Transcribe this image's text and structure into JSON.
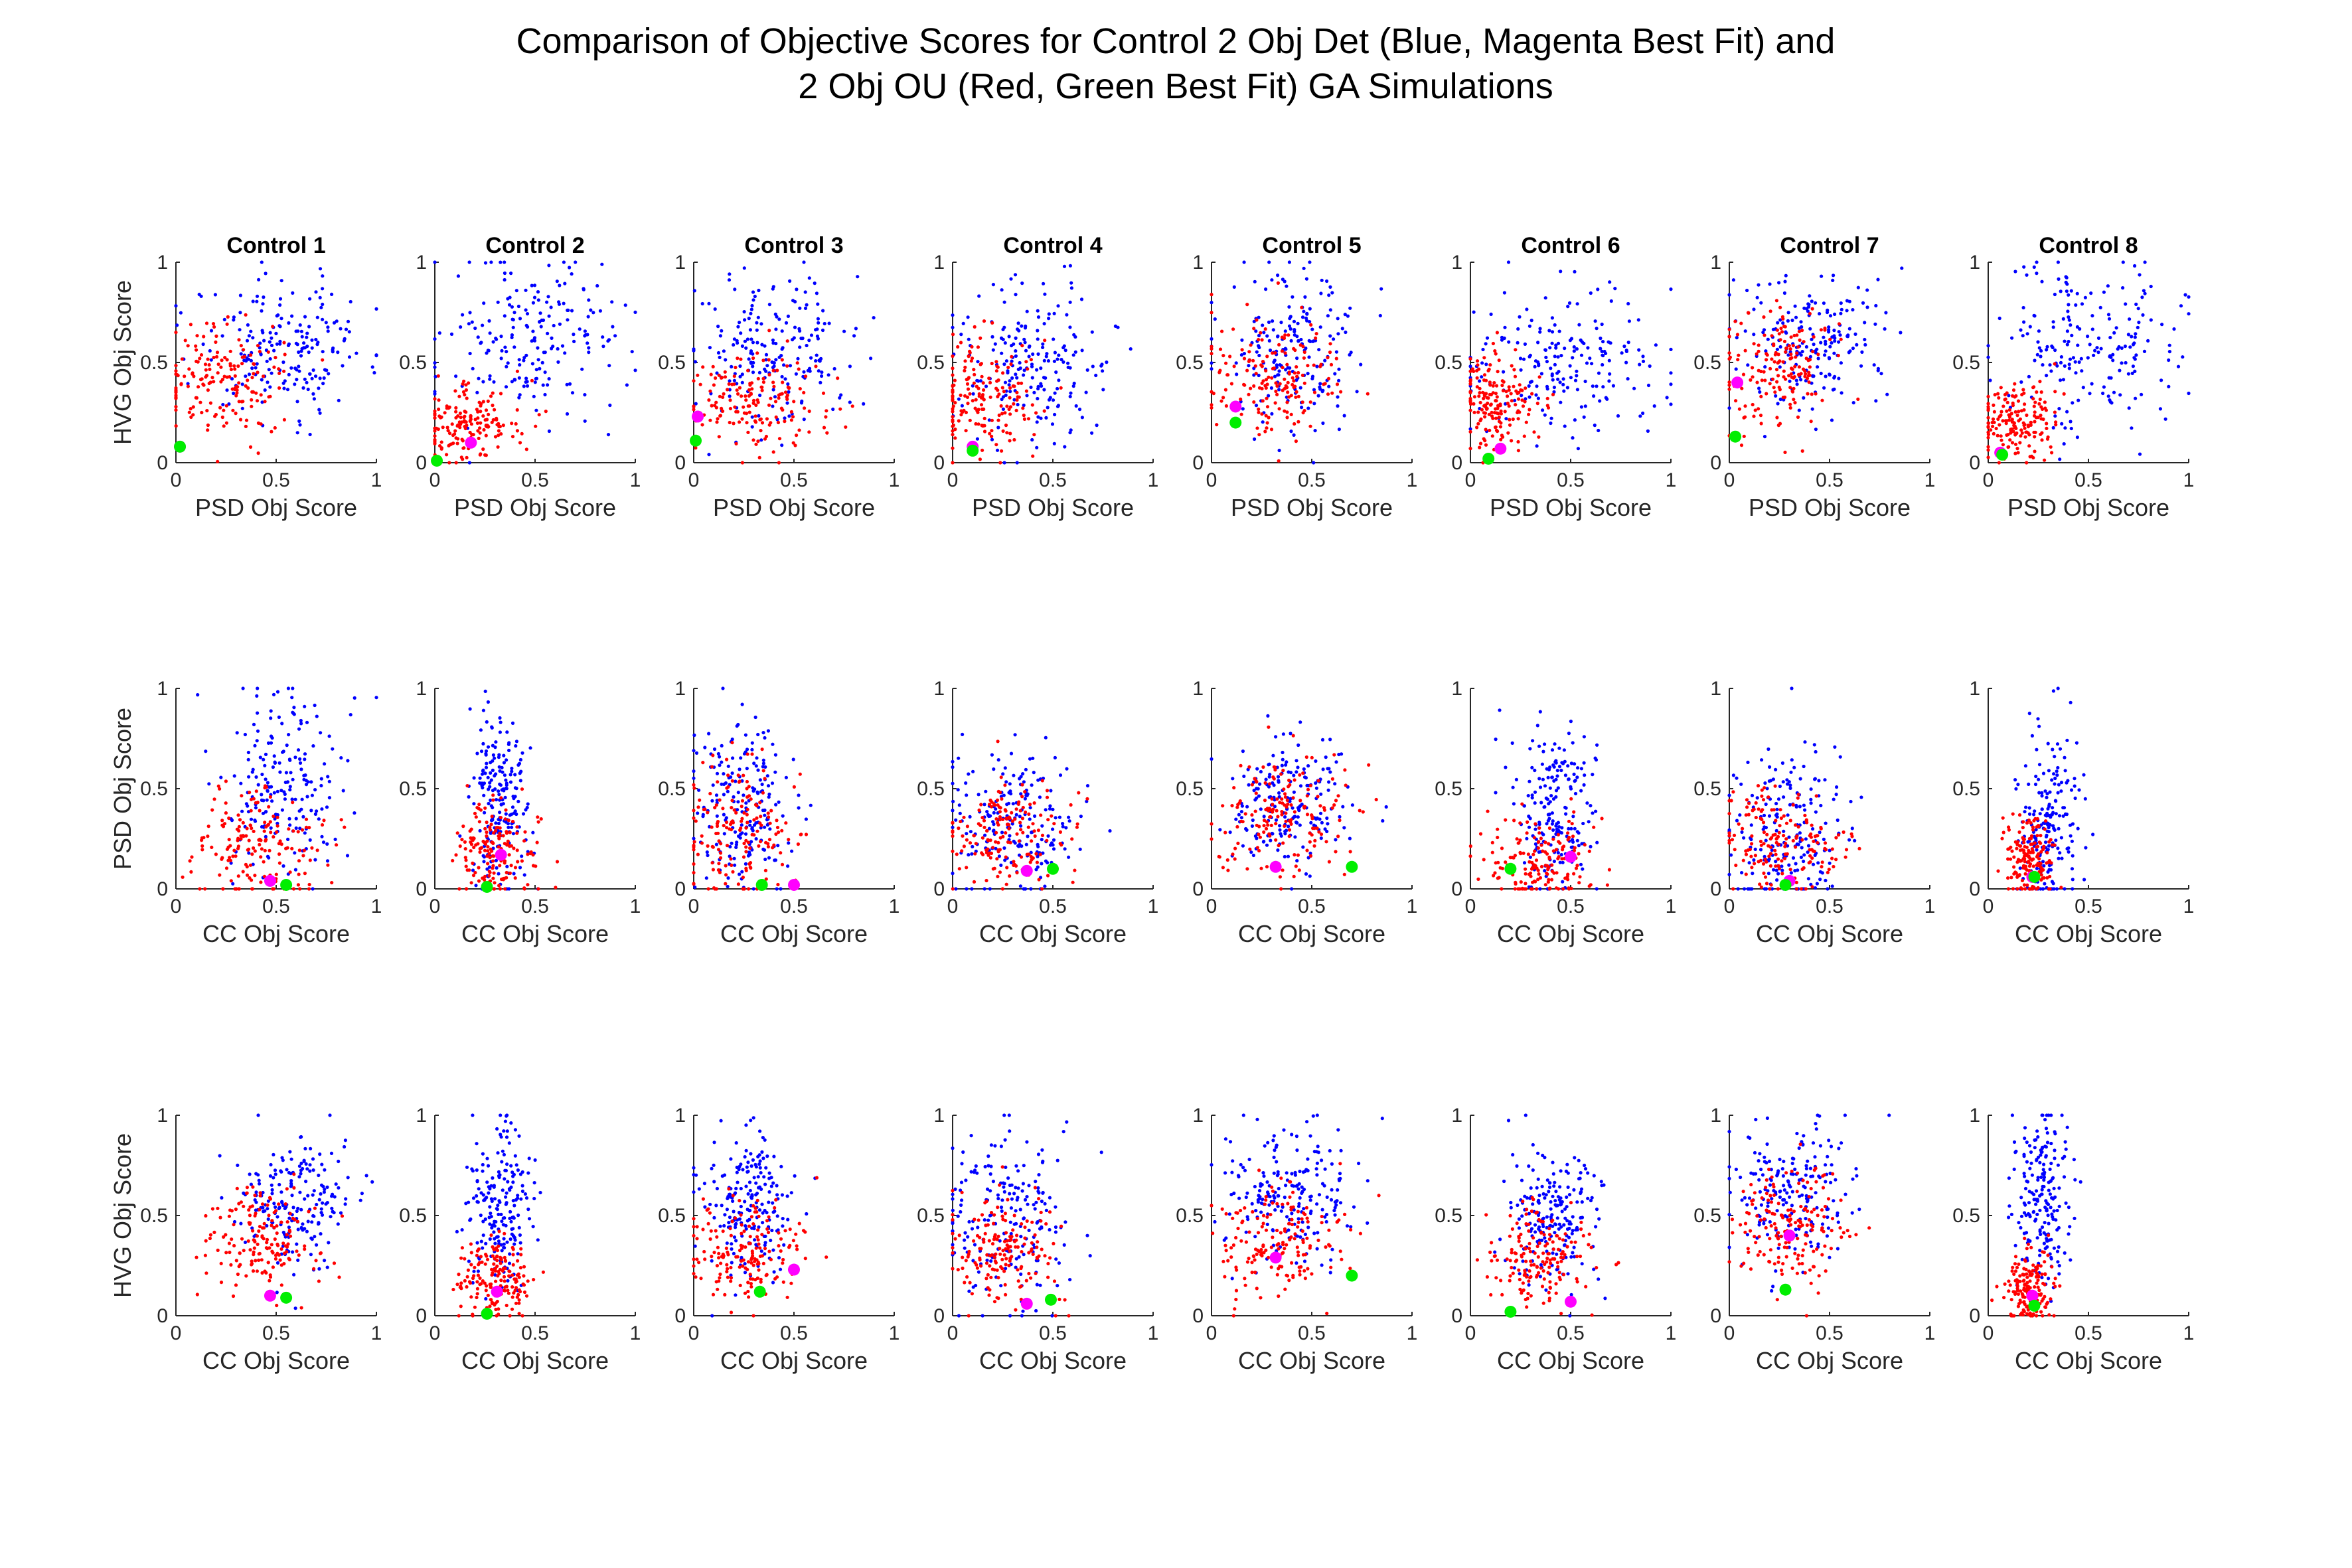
{
  "figure": {
    "title_lines": [
      "Comparison of Objective Scores for Control 2 Obj Det (Blue, Magenta Best Fit) and",
      "2 Obj OU (Red, Green Best Fit) GA Simulations"
    ]
  },
  "colors": {
    "det": "#0000ff",
    "det_best": "#ff00ff",
    "ou": "#ff0000",
    "ou_best": "#00ee00"
  },
  "chart_data": [
    {
      "type": "scatter",
      "row": 1,
      "col": 1,
      "title": "Control 1",
      "xlabel": "PSD Obj Score",
      "ylabel": "HVG Obj Score",
      "xlim": [
        0,
        1
      ],
      "ylim": [
        0,
        1
      ],
      "series": [
        {
          "color": "#0000ff",
          "n": 200,
          "x_mean": 0.55,
          "x_sd": 0.22,
          "y_mean": 0.58,
          "y_sd": 0.17
        },
        {
          "color": "#ff0000",
          "n": 170,
          "x_mean": 0.22,
          "x_sd": 0.16,
          "y_mean": 0.42,
          "y_sd": 0.14
        }
      ],
      "best_fit": [
        {
          "color": "#ff00ff",
          "x": 0.02,
          "y": 0.08
        },
        {
          "color": "#00ee00",
          "x": 0.02,
          "y": 0.08
        }
      ]
    },
    {
      "type": "scatter",
      "row": 1,
      "col": 2,
      "title": "Control 2",
      "xlabel": "PSD Obj Score",
      "ylabel": "",
      "xlim": [
        0,
        1
      ],
      "ylim": [
        0,
        1
      ],
      "series": [
        {
          "color": "#0000ff",
          "n": 200,
          "x_mean": 0.45,
          "x_sd": 0.22,
          "y_mean": 0.6,
          "y_sd": 0.2
        },
        {
          "color": "#ff0000",
          "n": 170,
          "x_mean": 0.18,
          "x_sd": 0.13,
          "y_mean": 0.2,
          "y_sd": 0.1
        }
      ],
      "best_fit": [
        {
          "color": "#ff00ff",
          "x": 0.18,
          "y": 0.1
        },
        {
          "color": "#00ee00",
          "x": 0.01,
          "y": 0.01
        }
      ]
    },
    {
      "type": "scatter",
      "row": 1,
      "col": 3,
      "title": "Control 3",
      "xlabel": "PSD Obj Score",
      "ylabel": "",
      "xlim": [
        0,
        1
      ],
      "ylim": [
        0,
        1
      ],
      "series": [
        {
          "color": "#0000ff",
          "n": 200,
          "x_mean": 0.4,
          "x_sd": 0.2,
          "y_mean": 0.55,
          "y_sd": 0.2
        },
        {
          "color": "#ff0000",
          "n": 170,
          "x_mean": 0.3,
          "x_sd": 0.2,
          "y_mean": 0.3,
          "y_sd": 0.12
        }
      ],
      "best_fit": [
        {
          "color": "#ff00ff",
          "x": 0.02,
          "y": 0.23
        },
        {
          "color": "#00ee00",
          "x": 0.01,
          "y": 0.11
        }
      ]
    },
    {
      "type": "scatter",
      "row": 1,
      "col": 4,
      "title": "Control 4",
      "xlabel": "PSD Obj Score",
      "ylabel": "",
      "xlim": [
        0,
        1
      ],
      "ylim": [
        0,
        1
      ],
      "series": [
        {
          "color": "#0000ff",
          "n": 200,
          "x_mean": 0.4,
          "x_sd": 0.2,
          "y_mean": 0.5,
          "y_sd": 0.2
        },
        {
          "color": "#ff0000",
          "n": 170,
          "x_mean": 0.18,
          "x_sd": 0.13,
          "y_mean": 0.35,
          "y_sd": 0.14
        }
      ],
      "best_fit": [
        {
          "color": "#ff00ff",
          "x": 0.1,
          "y": 0.08
        },
        {
          "color": "#00ee00",
          "x": 0.1,
          "y": 0.06
        }
      ]
    },
    {
      "type": "scatter",
      "row": 1,
      "col": 5,
      "title": "Control 5",
      "xlabel": "PSD Obj Score",
      "ylabel": "",
      "xlim": [
        0,
        1
      ],
      "ylim": [
        0,
        1
      ],
      "series": [
        {
          "color": "#0000ff",
          "n": 200,
          "x_mean": 0.42,
          "x_sd": 0.18,
          "y_mean": 0.55,
          "y_sd": 0.2
        },
        {
          "color": "#ff0000",
          "n": 170,
          "x_mean": 0.3,
          "x_sd": 0.18,
          "y_mean": 0.42,
          "y_sd": 0.14
        }
      ],
      "best_fit": [
        {
          "color": "#ff00ff",
          "x": 0.12,
          "y": 0.28
        },
        {
          "color": "#00ee00",
          "x": 0.12,
          "y": 0.2
        }
      ]
    },
    {
      "type": "scatter",
      "row": 1,
      "col": 6,
      "title": "Control 6",
      "xlabel": "PSD Obj Score",
      "ylabel": "",
      "xlim": [
        0,
        1
      ],
      "ylim": [
        0,
        1
      ],
      "series": [
        {
          "color": "#0000ff",
          "n": 200,
          "x_mean": 0.45,
          "x_sd": 0.23,
          "y_mean": 0.5,
          "y_sd": 0.18
        },
        {
          "color": "#ff0000",
          "n": 170,
          "x_mean": 0.12,
          "x_sd": 0.1,
          "y_mean": 0.3,
          "y_sd": 0.12
        }
      ],
      "best_fit": [
        {
          "color": "#ff00ff",
          "x": 0.15,
          "y": 0.07
        },
        {
          "color": "#00ee00",
          "x": 0.09,
          "y": 0.02
        }
      ]
    },
    {
      "type": "scatter",
      "row": 1,
      "col": 7,
      "title": "Control 7",
      "xlabel": "PSD Obj Score",
      "ylabel": "",
      "xlim": [
        0,
        1
      ],
      "ylim": [
        0,
        1
      ],
      "series": [
        {
          "color": "#0000ff",
          "n": 200,
          "x_mean": 0.38,
          "x_sd": 0.2,
          "y_mean": 0.6,
          "y_sd": 0.18
        },
        {
          "color": "#ff0000",
          "n": 170,
          "x_mean": 0.25,
          "x_sd": 0.14,
          "y_mean": 0.48,
          "y_sd": 0.15
        }
      ],
      "best_fit": [
        {
          "color": "#ff00ff",
          "x": 0.04,
          "y": 0.4
        },
        {
          "color": "#00ee00",
          "x": 0.03,
          "y": 0.13
        }
      ]
    },
    {
      "type": "scatter",
      "row": 1,
      "col": 8,
      "title": "Control 8",
      "xlabel": "PSD Obj Score",
      "ylabel": "",
      "xlim": [
        0,
        1
      ],
      "ylim": [
        0,
        1
      ],
      "series": [
        {
          "color": "#0000ff",
          "n": 200,
          "x_mean": 0.5,
          "x_sd": 0.22,
          "y_mean": 0.58,
          "y_sd": 0.2
        },
        {
          "color": "#ff0000",
          "n": 170,
          "x_mean": 0.14,
          "x_sd": 0.1,
          "y_mean": 0.2,
          "y_sd": 0.1
        }
      ],
      "best_fit": [
        {
          "color": "#ff00ff",
          "x": 0.06,
          "y": 0.05
        },
        {
          "color": "#00ee00",
          "x": 0.07,
          "y": 0.04
        }
      ]
    },
    {
      "type": "scatter",
      "row": 2,
      "col": 1,
      "title": "",
      "xlabel": "CC Obj Score",
      "ylabel": "PSD Obj Score",
      "xlim": [
        0,
        1
      ],
      "ylim": [
        0,
        1
      ],
      "series": [
        {
          "color": "#0000ff",
          "n": 200,
          "x_mean": 0.55,
          "x_sd": 0.16,
          "y_mean": 0.5,
          "y_sd": 0.22
        },
        {
          "color": "#ff0000",
          "n": 170,
          "x_mean": 0.42,
          "x_sd": 0.16,
          "y_mean": 0.22,
          "y_sd": 0.16
        }
      ],
      "best_fit": [
        {
          "color": "#ff00ff",
          "x": 0.47,
          "y": 0.04
        },
        {
          "color": "#00ee00",
          "x": 0.55,
          "y": 0.02
        }
      ]
    },
    {
      "type": "scatter",
      "row": 2,
      "col": 2,
      "title": "",
      "xlabel": "CC Obj Score",
      "ylabel": "",
      "xlim": [
        0,
        1
      ],
      "ylim": [
        0,
        1
      ],
      "series": [
        {
          "color": "#0000ff",
          "n": 200,
          "x_mean": 0.33,
          "x_sd": 0.08,
          "y_mean": 0.45,
          "y_sd": 0.22
        },
        {
          "color": "#ff0000",
          "n": 170,
          "x_mean": 0.3,
          "x_sd": 0.1,
          "y_mean": 0.18,
          "y_sd": 0.13
        }
      ],
      "best_fit": [
        {
          "color": "#ff00ff",
          "x": 0.33,
          "y": 0.17
        },
        {
          "color": "#00ee00",
          "x": 0.26,
          "y": 0.01
        }
      ]
    },
    {
      "type": "scatter",
      "row": 2,
      "col": 3,
      "title": "",
      "xlabel": "CC Obj Score",
      "ylabel": "",
      "xlim": [
        0,
        1
      ],
      "ylim": [
        0,
        1
      ],
      "series": [
        {
          "color": "#0000ff",
          "n": 200,
          "x_mean": 0.25,
          "x_sd": 0.12,
          "y_mean": 0.42,
          "y_sd": 0.2
        },
        {
          "color": "#ff0000",
          "n": 170,
          "x_mean": 0.22,
          "x_sd": 0.14,
          "y_mean": 0.3,
          "y_sd": 0.18
        }
      ],
      "best_fit": [
        {
          "color": "#ff00ff",
          "x": 0.5,
          "y": 0.02
        },
        {
          "color": "#00ee00",
          "x": 0.34,
          "y": 0.02
        }
      ]
    },
    {
      "type": "scatter",
      "row": 2,
      "col": 4,
      "title": "",
      "xlabel": "CC Obj Score",
      "ylabel": "",
      "xlim": [
        0,
        1
      ],
      "ylim": [
        0,
        1
      ],
      "series": [
        {
          "color": "#0000ff",
          "n": 200,
          "x_mean": 0.3,
          "x_sd": 0.16,
          "y_mean": 0.35,
          "y_sd": 0.2
        },
        {
          "color": "#ff0000",
          "n": 170,
          "x_mean": 0.28,
          "x_sd": 0.16,
          "y_mean": 0.28,
          "y_sd": 0.15
        }
      ],
      "best_fit": [
        {
          "color": "#ff00ff",
          "x": 0.37,
          "y": 0.09
        },
        {
          "color": "#00ee00",
          "x": 0.5,
          "y": 0.1
        }
      ]
    },
    {
      "type": "scatter",
      "row": 2,
      "col": 5,
      "title": "",
      "xlabel": "CC Obj Score",
      "ylabel": "",
      "xlim": [
        0,
        1
      ],
      "ylim": [
        0,
        1
      ],
      "series": [
        {
          "color": "#0000ff",
          "n": 200,
          "x_mean": 0.38,
          "x_sd": 0.16,
          "y_mean": 0.45,
          "y_sd": 0.15
        },
        {
          "color": "#ff0000",
          "n": 170,
          "x_mean": 0.35,
          "x_sd": 0.18,
          "y_mean": 0.38,
          "y_sd": 0.15
        }
      ],
      "best_fit": [
        {
          "color": "#ff00ff",
          "x": 0.32,
          "y": 0.11
        },
        {
          "color": "#00ee00",
          "x": 0.7,
          "y": 0.11
        }
      ]
    },
    {
      "type": "scatter",
      "row": 2,
      "col": 6,
      "title": "",
      "xlabel": "CC Obj Score",
      "ylabel": "",
      "xlim": [
        0,
        1
      ],
      "ylim": [
        0,
        1
      ],
      "series": [
        {
          "color": "#0000ff",
          "n": 200,
          "x_mean": 0.42,
          "x_sd": 0.1,
          "y_mean": 0.4,
          "y_sd": 0.22
        },
        {
          "color": "#ff0000",
          "n": 170,
          "x_mean": 0.35,
          "x_sd": 0.14,
          "y_mean": 0.15,
          "y_sd": 0.1
        }
      ],
      "best_fit": [
        {
          "color": "#ff00ff",
          "x": 0.5,
          "y": 0.16
        },
        {
          "color": "#00ee00",
          "x": 0.2,
          "y": 0.1
        }
      ]
    },
    {
      "type": "scatter",
      "row": 2,
      "col": 7,
      "title": "",
      "xlabel": "CC Obj Score",
      "ylabel": "",
      "xlim": [
        0,
        1
      ],
      "ylim": [
        0,
        1
      ],
      "series": [
        {
          "color": "#0000ff",
          "n": 200,
          "x_mean": 0.28,
          "x_sd": 0.16,
          "y_mean": 0.28,
          "y_sd": 0.2
        },
        {
          "color": "#ff0000",
          "n": 170,
          "x_mean": 0.28,
          "x_sd": 0.16,
          "y_mean": 0.22,
          "y_sd": 0.14
        }
      ],
      "best_fit": [
        {
          "color": "#ff00ff",
          "x": 0.3,
          "y": 0.04
        },
        {
          "color": "#00ee00",
          "x": 0.28,
          "y": 0.02
        }
      ]
    },
    {
      "type": "scatter",
      "row": 2,
      "col": 8,
      "title": "",
      "xlabel": "CC Obj Score",
      "ylabel": "",
      "xlim": [
        0,
        1
      ],
      "ylim": [
        0,
        1
      ],
      "series": [
        {
          "color": "#0000ff",
          "n": 200,
          "x_mean": 0.3,
          "x_sd": 0.08,
          "y_mean": 0.35,
          "y_sd": 0.22
        },
        {
          "color": "#ff0000",
          "n": 170,
          "x_mean": 0.2,
          "x_sd": 0.06,
          "y_mean": 0.15,
          "y_sd": 0.1
        }
      ],
      "best_fit": [
        {
          "color": "#ff00ff",
          "x": 0.22,
          "y": 0.06
        },
        {
          "color": "#00ee00",
          "x": 0.23,
          "y": 0.06
        }
      ]
    },
    {
      "type": "scatter",
      "row": 3,
      "col": 1,
      "title": "",
      "xlabel": "CC Obj Score",
      "ylabel": "HVG Obj Score",
      "xlim": [
        0,
        1
      ],
      "ylim": [
        0,
        1
      ],
      "series": [
        {
          "color": "#0000ff",
          "n": 200,
          "x_mean": 0.6,
          "x_sd": 0.15,
          "y_mean": 0.58,
          "y_sd": 0.15
        },
        {
          "color": "#ff0000",
          "n": 170,
          "x_mean": 0.42,
          "x_sd": 0.15,
          "y_mean": 0.38,
          "y_sd": 0.13
        }
      ],
      "best_fit": [
        {
          "color": "#ff00ff",
          "x": 0.47,
          "y": 0.1
        },
        {
          "color": "#00ee00",
          "x": 0.55,
          "y": 0.09
        }
      ]
    },
    {
      "type": "scatter",
      "row": 3,
      "col": 2,
      "title": "",
      "xlabel": "CC Obj Score",
      "ylabel": "",
      "xlim": [
        0,
        1
      ],
      "ylim": [
        0,
        1
      ],
      "series": [
        {
          "color": "#0000ff",
          "n": 200,
          "x_mean": 0.33,
          "x_sd": 0.08,
          "y_mean": 0.55,
          "y_sd": 0.2
        },
        {
          "color": "#ff0000",
          "n": 170,
          "x_mean": 0.3,
          "x_sd": 0.1,
          "y_mean": 0.18,
          "y_sd": 0.1
        }
      ],
      "best_fit": [
        {
          "color": "#ff00ff",
          "x": 0.31,
          "y": 0.12
        },
        {
          "color": "#00ee00",
          "x": 0.26,
          "y": 0.01
        }
      ]
    },
    {
      "type": "scatter",
      "row": 3,
      "col": 3,
      "title": "",
      "xlabel": "CC Obj Score",
      "ylabel": "",
      "xlim": [
        0,
        1
      ],
      "ylim": [
        0,
        1
      ],
      "series": [
        {
          "color": "#0000ff",
          "n": 200,
          "x_mean": 0.28,
          "x_sd": 0.12,
          "y_mean": 0.55,
          "y_sd": 0.18
        },
        {
          "color": "#ff0000",
          "n": 170,
          "x_mean": 0.25,
          "x_sd": 0.14,
          "y_mean": 0.32,
          "y_sd": 0.12
        }
      ],
      "best_fit": [
        {
          "color": "#ff00ff",
          "x": 0.5,
          "y": 0.23
        },
        {
          "color": "#00ee00",
          "x": 0.33,
          "y": 0.12
        }
      ]
    },
    {
      "type": "scatter",
      "row": 3,
      "col": 4,
      "title": "",
      "xlabel": "CC Obj Score",
      "ylabel": "",
      "xlim": [
        0,
        1
      ],
      "ylim": [
        0,
        1
      ],
      "series": [
        {
          "color": "#0000ff",
          "n": 200,
          "x_mean": 0.3,
          "x_sd": 0.16,
          "y_mean": 0.5,
          "y_sd": 0.2
        },
        {
          "color": "#ff0000",
          "n": 170,
          "x_mean": 0.25,
          "x_sd": 0.14,
          "y_mean": 0.32,
          "y_sd": 0.14
        }
      ],
      "best_fit": [
        {
          "color": "#ff00ff",
          "x": 0.37,
          "y": 0.06
        },
        {
          "color": "#00ee00",
          "x": 0.49,
          "y": 0.08
        }
      ]
    },
    {
      "type": "scatter",
      "row": 3,
      "col": 5,
      "title": "",
      "xlabel": "CC Obj Score",
      "ylabel": "",
      "xlim": [
        0,
        1
      ],
      "ylim": [
        0,
        1
      ],
      "series": [
        {
          "color": "#0000ff",
          "n": 200,
          "x_mean": 0.4,
          "x_sd": 0.16,
          "y_mean": 0.6,
          "y_sd": 0.17
        },
        {
          "color": "#ff0000",
          "n": 170,
          "x_mean": 0.35,
          "x_sd": 0.17,
          "y_mean": 0.38,
          "y_sd": 0.14
        }
      ],
      "best_fit": [
        {
          "color": "#ff00ff",
          "x": 0.32,
          "y": 0.29
        },
        {
          "color": "#00ee00",
          "x": 0.7,
          "y": 0.2
        }
      ]
    },
    {
      "type": "scatter",
      "row": 3,
      "col": 6,
      "title": "",
      "xlabel": "CC Obj Score",
      "ylabel": "",
      "xlim": [
        0,
        1
      ],
      "ylim": [
        0,
        1
      ],
      "series": [
        {
          "color": "#0000ff",
          "n": 200,
          "x_mean": 0.42,
          "x_sd": 0.12,
          "y_mean": 0.5,
          "y_sd": 0.17
        },
        {
          "color": "#ff0000",
          "n": 170,
          "x_mean": 0.33,
          "x_sd": 0.12,
          "y_mean": 0.28,
          "y_sd": 0.12
        }
      ],
      "best_fit": [
        {
          "color": "#ff00ff",
          "x": 0.5,
          "y": 0.07
        },
        {
          "color": "#00ee00",
          "x": 0.2,
          "y": 0.02
        }
      ]
    },
    {
      "type": "scatter",
      "row": 3,
      "col": 7,
      "title": "",
      "xlabel": "CC Obj Score",
      "ylabel": "",
      "xlim": [
        0,
        1
      ],
      "ylim": [
        0,
        1
      ],
      "series": [
        {
          "color": "#0000ff",
          "n": 200,
          "x_mean": 0.3,
          "x_sd": 0.16,
          "y_mean": 0.62,
          "y_sd": 0.18
        },
        {
          "color": "#ff0000",
          "n": 170,
          "x_mean": 0.3,
          "x_sd": 0.14,
          "y_mean": 0.45,
          "y_sd": 0.15
        }
      ],
      "best_fit": [
        {
          "color": "#ff00ff",
          "x": 0.3,
          "y": 0.4
        },
        {
          "color": "#00ee00",
          "x": 0.28,
          "y": 0.13
        }
      ]
    },
    {
      "type": "scatter",
      "row": 3,
      "col": 8,
      "title": "",
      "xlabel": "CC Obj Score",
      "ylabel": "",
      "xlim": [
        0,
        1
      ],
      "ylim": [
        0,
        1
      ],
      "series": [
        {
          "color": "#0000ff",
          "n": 200,
          "x_mean": 0.28,
          "x_sd": 0.07,
          "y_mean": 0.58,
          "y_sd": 0.2
        },
        {
          "color": "#ff0000",
          "n": 170,
          "x_mean": 0.2,
          "x_sd": 0.06,
          "y_mean": 0.15,
          "y_sd": 0.09
        }
      ],
      "best_fit": [
        {
          "color": "#ff00ff",
          "x": 0.22,
          "y": 0.1
        },
        {
          "color": "#00ee00",
          "x": 0.23,
          "y": 0.05
        }
      ]
    }
  ]
}
